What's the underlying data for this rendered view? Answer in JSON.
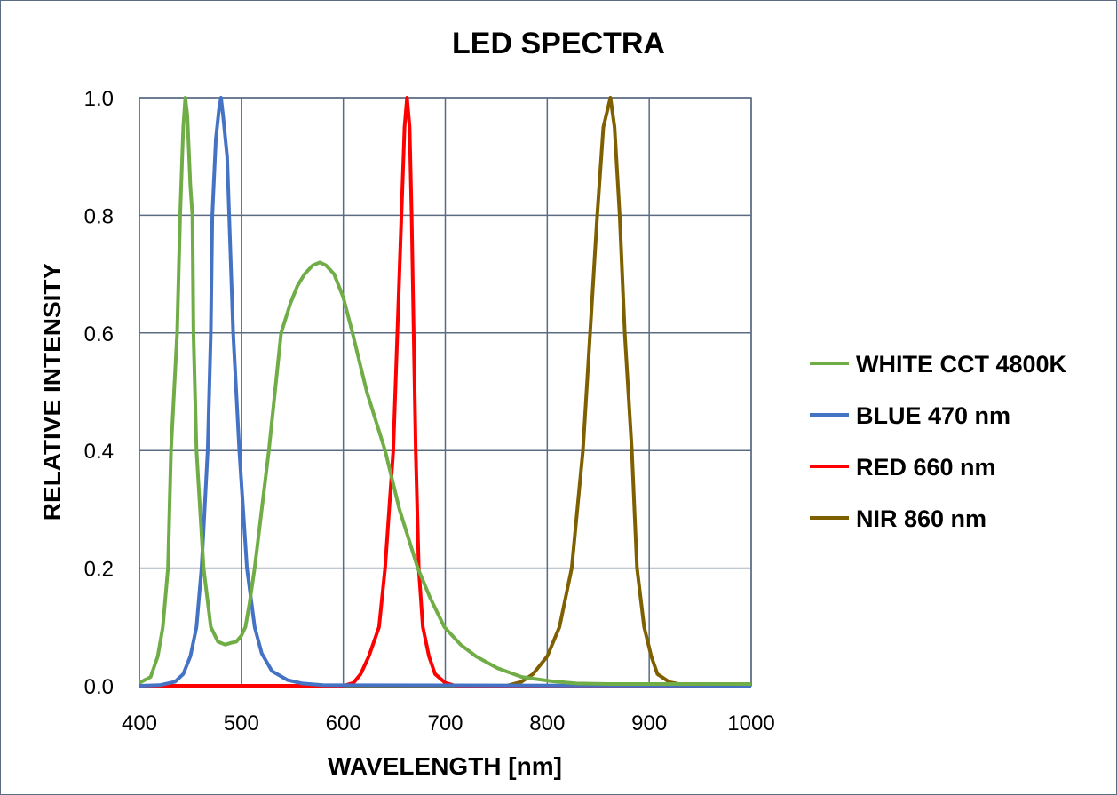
{
  "chart_data": {
    "type": "line",
    "title": "LED SPECTRA",
    "xlabel": "WAVELENGTH [nm]",
    "ylabel": "RELATIVE INTENSITY",
    "xlim": [
      400,
      1000
    ],
    "ylim": [
      0,
      1.0
    ],
    "xticks": [
      "400",
      "500",
      "600",
      "700",
      "800",
      "900",
      "1000"
    ],
    "yticks": [
      "0.0",
      "0.2",
      "0.4",
      "0.6",
      "0.8",
      "1.0"
    ],
    "grid": true,
    "legend_position": "right",
    "series": [
      {
        "name": "WHITE CCT 4800K",
        "color": "#70ad47",
        "x": [
          400,
          411,
          418,
          423,
          428,
          431,
          437,
          440,
          443,
          445,
          447,
          450,
          452,
          453,
          456,
          463,
          470,
          477,
          484,
          490,
          495,
          500,
          504,
          508,
          513,
          520,
          527,
          533,
          539,
          548,
          555,
          562,
          570,
          577,
          583,
          591,
          600,
          609,
          616,
          623,
          632,
          641,
          648,
          655,
          664,
          673,
          685,
          699,
          715,
          730,
          751,
          775,
          803,
          829,
          860,
          1000
        ],
        "y": [
          0.005,
          0.015,
          0.05,
          0.1,
          0.2,
          0.4,
          0.6,
          0.8,
          0.95,
          1.0,
          0.97,
          0.85,
          0.8,
          0.6,
          0.4,
          0.2,
          0.1,
          0.075,
          0.07,
          0.073,
          0.075,
          0.085,
          0.1,
          0.14,
          0.2,
          0.3,
          0.4,
          0.5,
          0.6,
          0.65,
          0.68,
          0.7,
          0.715,
          0.72,
          0.715,
          0.7,
          0.66,
          0.6,
          0.55,
          0.5,
          0.45,
          0.4,
          0.35,
          0.3,
          0.25,
          0.2,
          0.15,
          0.1,
          0.07,
          0.05,
          0.03,
          0.015,
          0.008,
          0.004,
          0.003,
          0.003
        ]
      },
      {
        "name": "BLUE 470 nm",
        "color": "#4472c4",
        "x": [
          400,
          420,
          435,
          443,
          450,
          456,
          461,
          467,
          470,
          471.5,
          475,
          478,
          480,
          482,
          486,
          488,
          492,
          498,
          505.5,
          513,
          520,
          530,
          545,
          560,
          580,
          1000
        ],
        "y": [
          0,
          0.001,
          0.007,
          0.02,
          0.05,
          0.1,
          0.2,
          0.4,
          0.6,
          0.8,
          0.93,
          0.98,
          1.0,
          0.97,
          0.9,
          0.8,
          0.6,
          0.4,
          0.2,
          0.1,
          0.055,
          0.025,
          0.01,
          0.004,
          0.001,
          0
        ]
      },
      {
        "name": "RED 660 nm",
        "color": "#ff0000",
        "x": [
          400,
          600,
          610,
          617,
          625,
          635,
          641,
          649,
          653,
          657,
          660,
          662.5,
          665,
          667,
          669,
          671,
          674,
          678,
          684,
          690,
          700,
          710,
          1000
        ],
        "y": [
          0,
          0,
          0.005,
          0.02,
          0.05,
          0.1,
          0.2,
          0.4,
          0.6,
          0.8,
          0.95,
          1.0,
          0.95,
          0.8,
          0.6,
          0.4,
          0.2,
          0.1,
          0.05,
          0.02,
          0.005,
          0,
          0
        ]
      },
      {
        "name": "NIR 860 nm",
        "color": "#7f6000",
        "x": [
          400,
          760,
          775,
          786,
          800,
          812,
          824,
          835,
          842,
          849,
          855,
          862,
          866,
          871,
          876,
          883,
          888,
          895,
          902,
          908,
          920,
          935,
          950,
          1000
        ],
        "y": [
          0,
          0,
          0.007,
          0.02,
          0.05,
          0.1,
          0.2,
          0.4,
          0.6,
          0.8,
          0.95,
          1.0,
          0.95,
          0.8,
          0.6,
          0.4,
          0.2,
          0.1,
          0.05,
          0.02,
          0.006,
          0.001,
          0,
          0
        ]
      }
    ]
  }
}
